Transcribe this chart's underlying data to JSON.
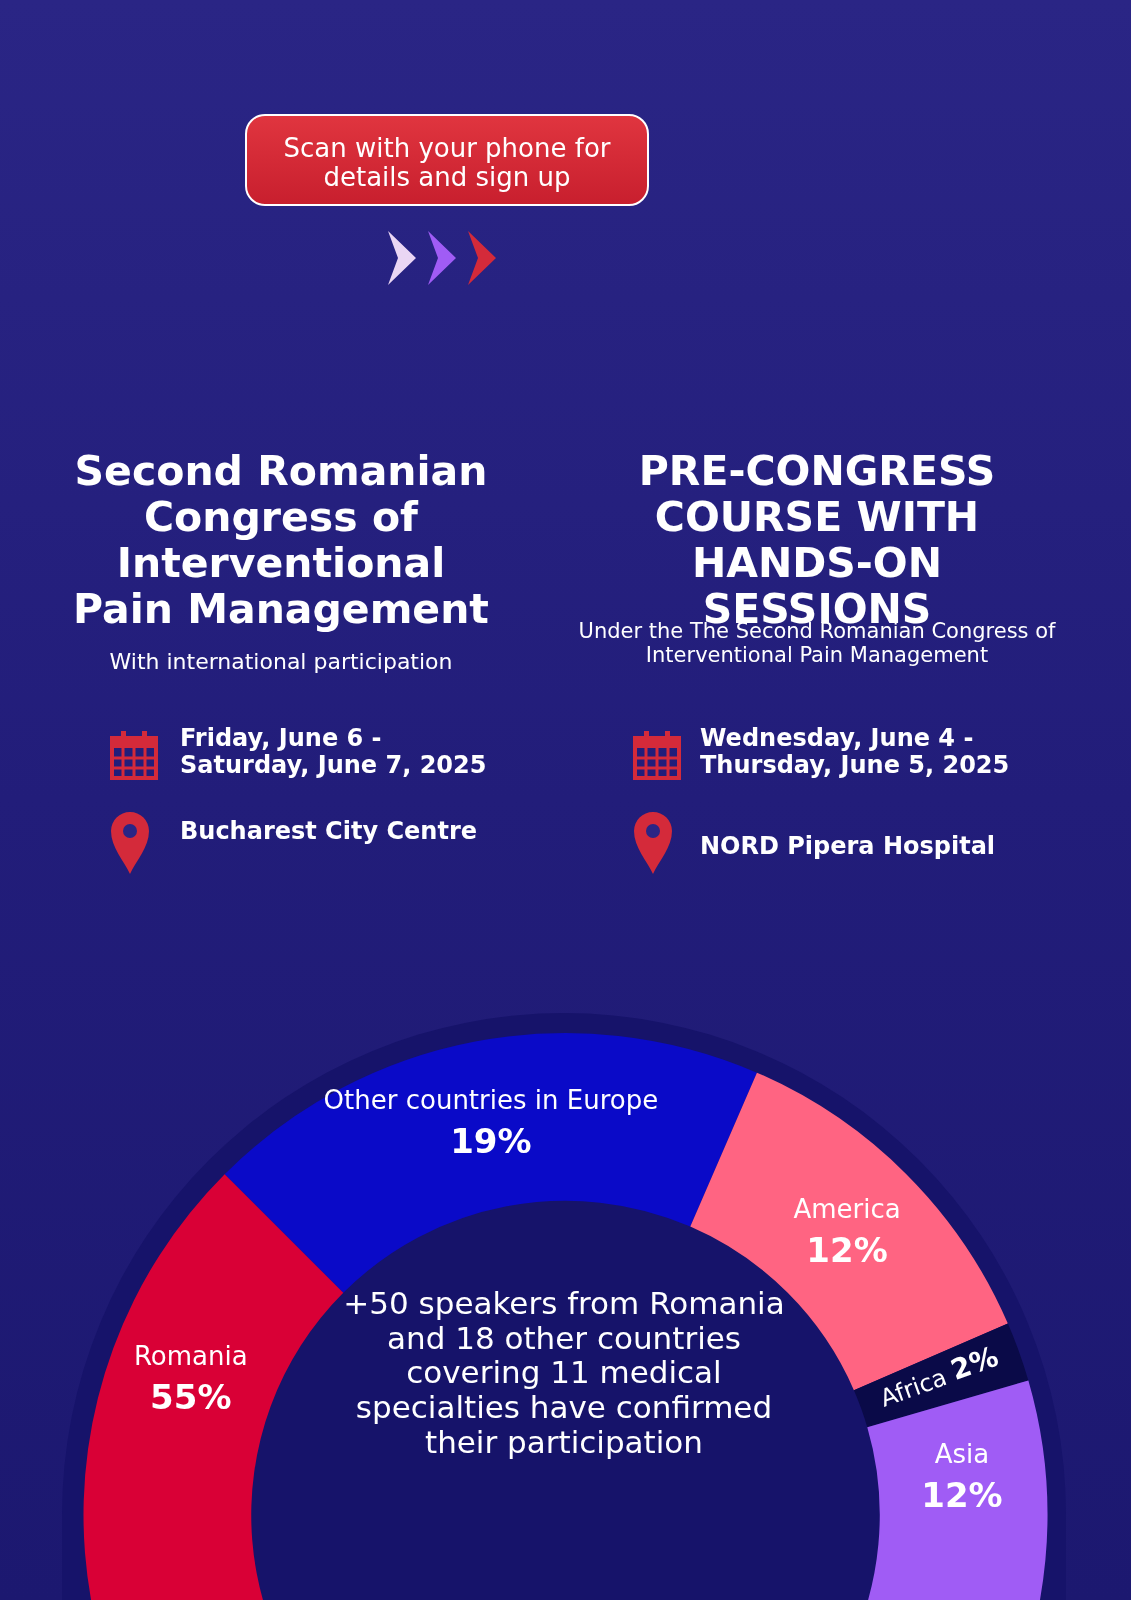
{
  "chart_data": {
    "type": "donut",
    "categories": [
      "Other countries in Europe",
      "America",
      "Africa",
      "Asia",
      "Romania"
    ],
    "values": [
      19,
      12,
      2,
      12,
      55
    ],
    "value_labels": [
      "19%",
      "12%",
      "2%",
      "12%",
      "55%"
    ],
    "colors": [
      "#0a0ac8",
      "#ff6482",
      "#0a0a48",
      "#a05cf5",
      "#d90036"
    ],
    "legend": false,
    "annotations": [
      "Scan with your phone for details and sign up",
      "Second Romanian Congress of Interventional Pain Management",
      "With international participation",
      "Friday, June 6 - Saturday, June 7, 2025",
      "Bucharest City Centre",
      "PRE-CONGRESS COURSE WITH HANDS-ON SESSIONS",
      "Under the The Second Romanian Congress of Interventional Pain Management",
      "Wednesday, June 4 - Thursday, June 5, 2025",
      "NORD Pipera Hospital",
      "+50 speakers from Romania and 18 other countries covering 11 medical specialties have confirmed their participation"
    ]
  }
}
